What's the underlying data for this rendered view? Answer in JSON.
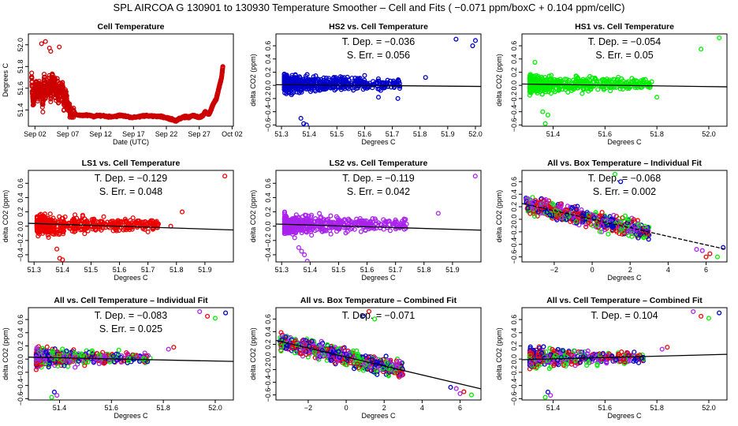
{
  "title": "SPL   AIRCOA G   130901 to 130930   Temperature Smoother – Cell and Fits ( −0.071  ppm/boxC +  0.104  ppm/cellC)",
  "chart_data": [
    {
      "type": "scatter",
      "title": "Cell Temperature",
      "xlabel": "Date (UTC)",
      "ylabel": "Degrees C",
      "xlim": [
        0,
        31.2
      ],
      "ylim": [
        51.25,
        52.1
      ],
      "xticks": [
        1,
        6,
        11,
        16,
        21,
        26,
        31
      ],
      "xticklabels": [
        "Sep 02",
        "Sep 07",
        "Sep 12",
        "Sep 17",
        "Sep 22",
        "Sep 27",
        "Oct 02"
      ],
      "yticks": [
        51.4,
        51.6,
        51.8,
        52.0
      ],
      "yticklabels": [
        "51.4",
        "51.6",
        "51.8",
        "52.0"
      ],
      "series": [
        {
          "name": "cell temperature",
          "color": "#cc0000",
          "x": [
            0.5,
            0.6,
            0.8,
            1.0,
            1.2,
            1.4,
            1.6,
            1.8,
            2.0,
            2.2,
            2.4,
            2.6,
            2.8,
            3.0,
            3.2,
            3.4,
            3.6,
            3.8,
            4.0,
            4.2,
            4.4,
            4.6,
            4.8,
            5.0,
            5.2,
            5.4,
            5.6,
            5.8,
            6.0,
            6.2,
            6.5,
            7.0,
            8,
            9,
            10,
            11,
            12,
            13,
            14,
            15,
            16,
            17,
            18,
            19,
            20,
            21,
            21.5,
            22,
            22.5,
            23,
            23.5,
            24,
            24.5,
            25,
            25.5,
            26,
            26.3,
            26.6,
            26.9,
            27.2,
            27.5,
            27.8,
            28.1,
            28.4,
            28.6,
            28.8,
            29.0,
            29.2,
            29.4,
            29.6,
            2.0,
            2.6,
            3.2,
            3.4,
            4.7
          ],
          "y": [
            51.7,
            51.55,
            51.45,
            51.6,
            51.65,
            51.5,
            51.62,
            51.55,
            51.6,
            51.45,
            51.7,
            51.52,
            51.62,
            51.58,
            51.65,
            51.5,
            51.7,
            51.6,
            51.68,
            51.55,
            51.62,
            51.5,
            51.6,
            51.58,
            51.63,
            51.45,
            51.55,
            51.5,
            51.45,
            51.42,
            51.38,
            51.36,
            51.35,
            51.35,
            51.34,
            51.35,
            51.34,
            51.34,
            51.35,
            51.34,
            51.33,
            51.34,
            51.35,
            51.34,
            51.34,
            51.33,
            51.32,
            51.31,
            51.3,
            51.32,
            51.33,
            51.34,
            51.33,
            51.35,
            51.34,
            51.33,
            51.34,
            51.35,
            51.38,
            51.37,
            51.36,
            51.4,
            51.45,
            51.48,
            51.5,
            51.55,
            51.6,
            51.65,
            51.7,
            51.8,
            52.01,
            52.03,
            51.97,
            51.94,
            51.98
          ]
        }
      ]
    },
    {
      "type": "scatter",
      "title": "HS2 vs. Cell Temperature",
      "xlabel": "Degrees C",
      "ylabel": "delta CO2 (ppm)",
      "xlim": [
        51.28,
        52.02
      ],
      "ylim": [
        -0.62,
        0.78
      ],
      "xticks": [
        51.3,
        51.4,
        51.5,
        51.6,
        51.7,
        51.8,
        51.9,
        52.0
      ],
      "xticklabels": [
        "51.3",
        "51.4",
        "51.5",
        "51.6",
        "51.7",
        "51.8",
        "51.9",
        "52.0"
      ],
      "yticks": [
        -0.6,
        -0.4,
        -0.2,
        0.0,
        0.2,
        0.4,
        0.6
      ],
      "yticklabels": [
        "−0.6",
        "−0.4",
        "−0.2",
        "0.0",
        "0.2",
        "0.4",
        "0.6"
      ],
      "annotations": [
        "T. Dep.  =  −0.036",
        "S. Err.  =  0.056"
      ],
      "fit": {
        "slope": -0.036,
        "intercept_at_xmin": 0.01
      },
      "series": [
        {
          "name": "HS2",
          "color": "#0000cc",
          "cloud": {
            "xmin": 51.31,
            "xmax": 51.73,
            "yspread": 0.2
          },
          "x": [
            51.93,
            52.0,
            51.99,
            51.82,
            51.38,
            51.39,
            51.37,
            51.6,
            51.65,
            51.72
          ],
          "y": [
            0.7,
            0.68,
            0.6,
            0.12,
            -0.58,
            -0.6,
            -0.5,
            0.15,
            -0.18,
            -0.2
          ]
        }
      ]
    },
    {
      "type": "scatter",
      "title": "HS1 vs. Cell Temperature",
      "xlabel": "Degrees C",
      "ylabel": "delta CO2 (ppm)",
      "xlim": [
        51.28,
        52.07
      ],
      "ylim": [
        -0.62,
        0.78
      ],
      "xticks": [
        51.4,
        51.6,
        51.8,
        52.0
      ],
      "xticklabels": [
        "51.4",
        "51.6",
        "51.8",
        "52.0"
      ],
      "yticks": [
        -0.6,
        -0.4,
        -0.2,
        0.0,
        0.2,
        0.4,
        0.6
      ],
      "yticklabels": [
        "−0.6",
        "−0.4",
        "−0.2",
        "0.0",
        "0.2",
        "0.4",
        "0.6"
      ],
      "annotations": [
        "T. Dep.  =  −0.054",
        "S. Err.  =  0.05"
      ],
      "fit": {
        "slope": -0.054,
        "intercept_at_xmin": 0.02
      },
      "series": [
        {
          "name": "HS1",
          "color": "#00ee00",
          "cloud": {
            "xmin": 51.31,
            "xmax": 51.78,
            "yspread": 0.2
          },
          "x": [
            52.04,
            51.97,
            51.33,
            51.37,
            51.38,
            51.36,
            51.8
          ],
          "y": [
            0.72,
            0.55,
            0.35,
            -0.58,
            -0.45,
            -0.4,
            -0.18
          ]
        }
      ]
    },
    {
      "type": "scatter",
      "title": "LS1 vs. Cell Temperature",
      "xlabel": "Degrees C",
      "ylabel": "delta CO2 (ppm)",
      "xlim": [
        51.28,
        52.0
      ],
      "ylim": [
        -0.5,
        0.78
      ],
      "xticks": [
        51.3,
        51.4,
        51.5,
        51.6,
        51.7,
        51.8,
        51.9
      ],
      "xticklabels": [
        "51.3",
        "51.4",
        "51.5",
        "51.6",
        "51.7",
        "51.8",
        "51.9"
      ],
      "yticks": [
        -0.4,
        -0.2,
        0.0,
        0.2,
        0.4,
        0.6
      ],
      "yticklabels": [
        "−0.4",
        "−0.2",
        "0.0",
        "0.2",
        "0.4",
        "0.6"
      ],
      "annotations": [
        "T. Dep.  =  −0.129",
        "S. Err.  =  0.048"
      ],
      "fit": {
        "slope": -0.129,
        "intercept_at_xmin": 0.04
      },
      "series": [
        {
          "name": "LS1",
          "color": "#ee0000",
          "cloud": {
            "xmin": 51.31,
            "xmax": 51.74,
            "yspread": 0.2
          },
          "x": [
            51.97,
            51.82,
            51.4,
            51.39,
            51.38,
            51.78,
            51.7
          ],
          "y": [
            0.7,
            0.2,
            -0.47,
            -0.45,
            -0.32,
            0.0,
            -0.08
          ]
        }
      ]
    },
    {
      "type": "scatter",
      "title": "LS2 vs. Cell Temperature",
      "xlabel": "Degrees C",
      "ylabel": "delta CO2 (ppm)",
      "xlim": [
        51.28,
        52.0
      ],
      "ylim": [
        -0.5,
        0.78
      ],
      "xticks": [
        51.3,
        51.4,
        51.5,
        51.6,
        51.7,
        51.8,
        51.9
      ],
      "xticklabels": [
        "51.3",
        "51.4",
        "51.5",
        "51.6",
        "51.7",
        "51.8",
        "51.9"
      ],
      "yticks": [
        -0.4,
        -0.2,
        0.0,
        0.2,
        0.4,
        0.6
      ],
      "yticklabels": [
        "−0.4",
        "−0.2",
        "0.0",
        "0.2",
        "0.4",
        "0.6"
      ],
      "annotations": [
        "T. Dep.  =  −0.119",
        "S. Err.  =  0.042"
      ],
      "fit": {
        "slope": -0.119,
        "intercept_at_xmin": 0.03
      },
      "series": [
        {
          "name": "LS2",
          "color": "#aa22ee",
          "cloud": {
            "xmin": 51.31,
            "xmax": 51.74,
            "yspread": 0.2
          },
          "x": [
            51.98,
            51.85,
            51.39,
            51.38,
            51.37,
            51.36
          ],
          "y": [
            0.7,
            0.18,
            -0.5,
            -0.4,
            -0.35,
            -0.3
          ]
        }
      ]
    },
    {
      "type": "scatter",
      "title": "All vs. Box Temperature – Individual Fit",
      "xlabel": "Degrees C",
      "ylabel": "delta CO2 (ppm)",
      "xlim": [
        -3.7,
        7.1
      ],
      "ylim": [
        -0.68,
        0.78
      ],
      "xticks": [
        -2,
        0,
        2,
        4,
        6
      ],
      "xticklabels": [
        "−2",
        "0",
        "2",
        "4",
        "6"
      ],
      "yticks": [
        -0.6,
        -0.4,
        -0.2,
        0.0,
        0.2,
        0.4,
        0.6
      ],
      "yticklabels": [
        "−0.6",
        "−0.4",
        "−0.2",
        "0.0",
        "0.2",
        "0.4",
        "0.6"
      ],
      "annotations": [
        "T. Dep.  =  −0.068",
        "S. Err.  =  0.002"
      ],
      "fit": {
        "slope": -0.068,
        "intercept": 0.0,
        "dashed": true
      },
      "series": [
        {
          "name": "all",
          "colors": [
            "#aa22ee",
            "#ee0000",
            "#00ee00",
            "#0000cc"
          ],
          "band": {
            "xmin": -3.5,
            "xmax": 3.0,
            "slope": -0.068,
            "yspread": 0.2
          },
          "x": [
            5.8,
            6.2,
            6.6,
            6.9,
            5.5,
            6.0,
            1.2,
            1.5
          ],
          "y": [
            -0.5,
            -0.55,
            -0.6,
            -0.45,
            -0.48,
            -0.6,
            0.72,
            0.6
          ]
        }
      ]
    },
    {
      "type": "scatter",
      "title": "All vs. Cell Temperature – Individual Fit",
      "xlabel": "Degrees C",
      "ylabel": "delta CO2 (ppm)",
      "xlim": [
        51.28,
        52.07
      ],
      "ylim": [
        -0.62,
        0.78
      ],
      "xticks": [
        51.4,
        51.6,
        51.8,
        52.0
      ],
      "xticklabels": [
        "51.4",
        "51.6",
        "51.8",
        "52.0"
      ],
      "yticks": [
        -0.6,
        -0.4,
        -0.2,
        0.0,
        0.2,
        0.4,
        0.6
      ],
      "yticklabels": [
        "−0.6",
        "−0.4",
        "−0.2",
        "0.0",
        "0.2",
        "0.4",
        "0.6"
      ],
      "annotations": [
        "T. Dep.  =  −0.083",
        "S. Err.  =  0.025"
      ],
      "fit": {
        "slope": -0.083,
        "intercept_at_xmin": 0.03
      },
      "series": [
        {
          "name": "all",
          "colors": [
            "#aa22ee",
            "#ee0000",
            "#00ee00",
            "#0000cc"
          ],
          "cloud": {
            "xmin": 51.31,
            "xmax": 51.75,
            "yspread": 0.2
          },
          "x": [
            51.94,
            51.97,
            52.0,
            52.04,
            51.82,
            51.84,
            51.37,
            51.38,
            51.39
          ],
          "y": [
            0.72,
            0.65,
            0.62,
            0.7,
            0.15,
            0.18,
            -0.58,
            -0.5,
            -0.55
          ]
        }
      ]
    },
    {
      "type": "scatter",
      "title": "All vs. Box Temperature – Combined Fit",
      "xlabel": "Degrees C",
      "ylabel": "delta CO2 (ppm)",
      "xlim": [
        -3.7,
        7.1
      ],
      "ylim": [
        -0.68,
        0.78
      ],
      "xticks": [
        -2,
        0,
        2,
        4,
        6
      ],
      "xticklabels": [
        "−2",
        "0",
        "2",
        "4",
        "6"
      ],
      "yticks": [
        -0.6,
        -0.4,
        -0.2,
        0.0,
        0.2,
        0.4,
        0.6
      ],
      "yticklabels": [
        "−0.6",
        "−0.4",
        "−0.2",
        "0.0",
        "0.2",
        "0.4",
        "0.6"
      ],
      "annotations": [
        "T. Dep.  =  −0.071"
      ],
      "fit": {
        "slope": -0.071,
        "intercept": 0.0
      },
      "series": [
        {
          "name": "all",
          "colors": [
            "#aa22ee",
            "#ee0000",
            "#00ee00",
            "#0000cc"
          ],
          "band": {
            "xmin": -3.5,
            "xmax": 3.0,
            "slope": -0.071,
            "yspread": 0.2
          },
          "x": [
            5.8,
            6.2,
            6.6,
            5.5,
            6.0,
            1.2,
            1.5,
            0.9
          ],
          "y": [
            -0.5,
            -0.55,
            -0.6,
            -0.48,
            -0.58,
            0.72,
            0.6,
            0.65
          ]
        }
      ]
    },
    {
      "type": "scatter",
      "title": "All vs. Cell Temperature – Combined Fit",
      "xlabel": "Degrees C",
      "ylabel": "delta CO2 (ppm)",
      "xlim": [
        51.28,
        52.07
      ],
      "ylim": [
        -0.62,
        0.78
      ],
      "xticks": [
        51.4,
        51.6,
        51.8,
        52.0
      ],
      "xticklabels": [
        "51.4",
        "51.6",
        "51.8",
        "52.0"
      ],
      "yticks": [
        -0.6,
        -0.4,
        -0.2,
        0.0,
        0.2,
        0.4,
        0.6
      ],
      "yticklabels": [
        "−0.6",
        "−0.4",
        "−0.2",
        "0.0",
        "0.2",
        "0.4",
        "0.6"
      ],
      "annotations": [
        "T. Dep.  =  0.104"
      ],
      "fit": {
        "slope": 0.104,
        "intercept_at_xmin": -0.01
      },
      "series": [
        {
          "name": "all",
          "colors": [
            "#aa22ee",
            "#ee0000",
            "#00ee00",
            "#0000cc"
          ],
          "cloud": {
            "xmin": 51.31,
            "xmax": 51.75,
            "yspread": 0.2
          },
          "x": [
            51.94,
            51.97,
            52.0,
            52.04,
            51.82,
            51.84,
            51.37,
            51.38,
            51.39
          ],
          "y": [
            0.72,
            0.65,
            0.62,
            0.7,
            0.15,
            0.18,
            -0.58,
            -0.5,
            -0.55
          ]
        }
      ]
    }
  ]
}
